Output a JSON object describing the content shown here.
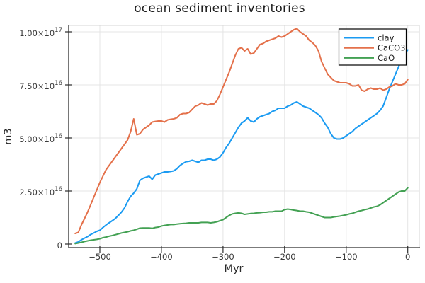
{
  "title": "ocean sediment inventories",
  "chart_data": {
    "type": "line",
    "title": "ocean sediment inventories",
    "xlabel": "Myr",
    "ylabel": "m3",
    "grid": true,
    "legend_position": "top-right",
    "legend": {
      "background": "#ffffff",
      "border_color": "#000000"
    },
    "xlim": [
      -551,
      19
    ],
    "ylim_1e16": [
      -0.17,
      10.3
    ],
    "y_units": "1e16 m3",
    "xticks": [
      {
        "v": -500,
        "label": "−500"
      },
      {
        "v": -400,
        "label": "−400"
      },
      {
        "v": -300,
        "label": "−300"
      },
      {
        "v": -200,
        "label": "−200"
      },
      {
        "v": -100,
        "label": "−100"
      },
      {
        "v": 0,
        "label": "0"
      }
    ],
    "yticks": [
      {
        "v": 0,
        "base": "0",
        "exp": ""
      },
      {
        "v": 2.5,
        "base": "2.50×10",
        "exp": "16"
      },
      {
        "v": 5,
        "base": "5.00×10",
        "exp": "16"
      },
      {
        "v": 7.5,
        "base": "7.50×10",
        "exp": "16"
      },
      {
        "v": 10,
        "base": "1.00×10",
        "exp": "17"
      }
    ],
    "x": [
      -540,
      -535,
      -530,
      -525,
      -520,
      -515,
      -510,
      -505,
      -500,
      -495,
      -490,
      -485,
      -480,
      -475,
      -470,
      -465,
      -460,
      -455,
      -450,
      -445,
      -440,
      -435,
      -430,
      -425,
      -420,
      -415,
      -410,
      -405,
      -400,
      -395,
      -390,
      -385,
      -380,
      -375,
      -370,
      -365,
      -360,
      -355,
      -350,
      -345,
      -340,
      -335,
      -330,
      -325,
      -320,
      -315,
      -310,
      -305,
      -300,
      -295,
      -290,
      -285,
      -280,
      -275,
      -270,
      -265,
      -260,
      -255,
      -250,
      -245,
      -240,
      -235,
      -230,
      -225,
      -220,
      -215,
      -210,
      -205,
      -200,
      -195,
      -190,
      -185,
      -180,
      -175,
      -170,
      -165,
      -160,
      -155,
      -150,
      -145,
      -140,
      -135,
      -130,
      -125,
      -120,
      -115,
      -110,
      -105,
      -100,
      -95,
      -90,
      -85,
      -80,
      -75,
      -70,
      -65,
      -60,
      -55,
      -50,
      -45,
      -40,
      -35,
      -30,
      -25,
      -20,
      -15,
      -10,
      -5,
      0
    ],
    "series": [
      {
        "name": "clay",
        "color": "#1b9bf2",
        "y_1e16": [
          0.05,
          0.1,
          0.2,
          0.28,
          0.35,
          0.45,
          0.52,
          0.6,
          0.65,
          0.78,
          0.9,
          1.0,
          1.1,
          1.2,
          1.35,
          1.5,
          1.7,
          2.0,
          2.25,
          2.4,
          2.6,
          3.0,
          3.1,
          3.15,
          3.2,
          3.05,
          3.25,
          3.3,
          3.35,
          3.4,
          3.4,
          3.42,
          3.45,
          3.55,
          3.7,
          3.8,
          3.88,
          3.9,
          3.95,
          3.9,
          3.85,
          3.95,
          3.95,
          4.0,
          4.0,
          3.95,
          4.0,
          4.1,
          4.3,
          4.55,
          4.75,
          5.0,
          5.25,
          5.5,
          5.7,
          5.8,
          5.95,
          5.8,
          5.75,
          5.9,
          6.0,
          6.05,
          6.1,
          6.15,
          6.25,
          6.3,
          6.4,
          6.4,
          6.4,
          6.5,
          6.55,
          6.65,
          6.7,
          6.6,
          6.5,
          6.45,
          6.4,
          6.3,
          6.2,
          6.1,
          5.95,
          5.7,
          5.5,
          5.2,
          5.0,
          4.95,
          4.95,
          5.0,
          5.1,
          5.2,
          5.3,
          5.45,
          5.55,
          5.65,
          5.75,
          5.85,
          5.95,
          6.05,
          6.15,
          6.3,
          6.5,
          6.9,
          7.3,
          7.65,
          8.0,
          8.35,
          8.7,
          8.95,
          9.15
        ]
      },
      {
        "name": "CaCO3",
        "color": "#e4714b",
        "y_1e16": [
          0.5,
          0.55,
          0.9,
          1.2,
          1.5,
          1.85,
          2.2,
          2.55,
          2.9,
          3.2,
          3.5,
          3.7,
          3.9,
          4.1,
          4.3,
          4.5,
          4.7,
          4.9,
          5.3,
          5.9,
          5.15,
          5.2,
          5.4,
          5.5,
          5.6,
          5.75,
          5.78,
          5.8,
          5.8,
          5.75,
          5.85,
          5.88,
          5.9,
          5.95,
          6.1,
          6.15,
          6.15,
          6.2,
          6.35,
          6.5,
          6.55,
          6.65,
          6.6,
          6.55,
          6.6,
          6.6,
          6.75,
          7.05,
          7.4,
          7.75,
          8.1,
          8.5,
          8.9,
          9.2,
          9.25,
          9.1,
          9.2,
          8.95,
          9.0,
          9.2,
          9.4,
          9.45,
          9.55,
          9.6,
          9.65,
          9.7,
          9.8,
          9.75,
          9.8,
          9.9,
          10.0,
          10.1,
          10.15,
          10.0,
          9.9,
          9.8,
          9.6,
          9.5,
          9.35,
          9.1,
          8.6,
          8.3,
          8.0,
          7.85,
          7.7,
          7.65,
          7.6,
          7.6,
          7.6,
          7.55,
          7.45,
          7.45,
          7.5,
          7.25,
          7.2,
          7.3,
          7.35,
          7.3,
          7.3,
          7.35,
          7.25,
          7.3,
          7.4,
          7.45,
          7.55,
          7.5,
          7.5,
          7.55,
          7.75
        ]
      },
      {
        "name": "CaO",
        "color": "#43a153",
        "y_1e16": [
          0.02,
          0.05,
          0.08,
          0.12,
          0.15,
          0.18,
          0.2,
          0.22,
          0.25,
          0.3,
          0.33,
          0.37,
          0.4,
          0.44,
          0.48,
          0.52,
          0.55,
          0.58,
          0.62,
          0.65,
          0.7,
          0.75,
          0.76,
          0.76,
          0.76,
          0.74,
          0.78,
          0.8,
          0.85,
          0.88,
          0.9,
          0.92,
          0.92,
          0.94,
          0.96,
          0.97,
          0.98,
          1.0,
          1.0,
          1.0,
          1.0,
          1.02,
          1.02,
          1.02,
          1.0,
          1.02,
          1.05,
          1.1,
          1.15,
          1.25,
          1.35,
          1.42,
          1.45,
          1.47,
          1.45,
          1.4,
          1.42,
          1.44,
          1.45,
          1.47,
          1.48,
          1.5,
          1.5,
          1.52,
          1.52,
          1.55,
          1.55,
          1.55,
          1.62,
          1.65,
          1.63,
          1.6,
          1.58,
          1.55,
          1.55,
          1.52,
          1.5,
          1.45,
          1.4,
          1.35,
          1.3,
          1.25,
          1.25,
          1.25,
          1.28,
          1.3,
          1.32,
          1.35,
          1.38,
          1.42,
          1.45,
          1.5,
          1.55,
          1.58,
          1.62,
          1.65,
          1.7,
          1.75,
          1.78,
          1.85,
          1.95,
          2.05,
          2.15,
          2.25,
          2.35,
          2.45,
          2.5,
          2.5,
          2.65
        ]
      }
    ]
  }
}
